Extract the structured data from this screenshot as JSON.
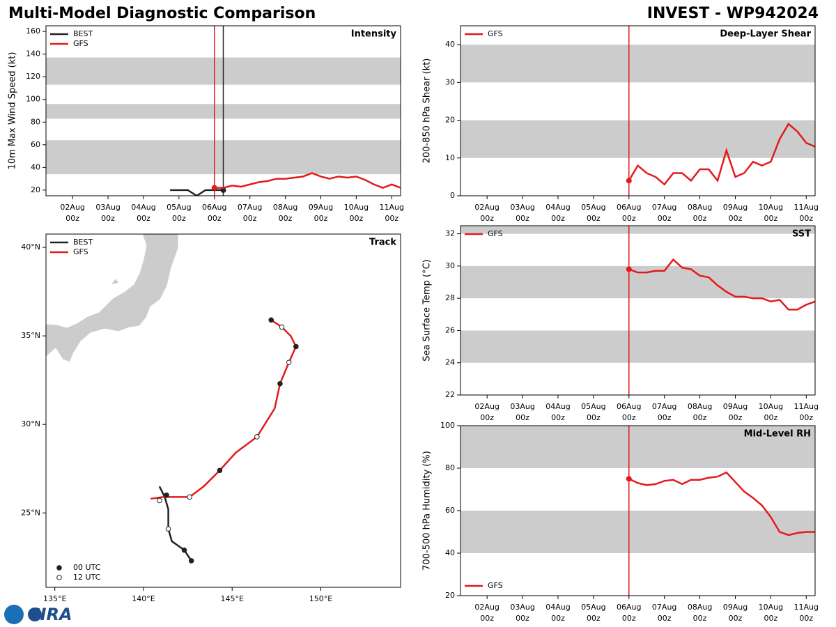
{
  "header": {
    "title": "Multi-Model Diagnostic Comparison",
    "subtitle": "INVEST - WP942024"
  },
  "logo": "CIRA",
  "chart_data": [
    {
      "type": "line",
      "title": "Intensity",
      "ylabel": "10m Max Wind Speed (kt)",
      "xlim": [
        "01Aug 06z",
        "11Aug 06z"
      ],
      "xticks": [
        "02Aug 00z",
        "03Aug 00z",
        "04Aug 00z",
        "05Aug 00z",
        "06Aug 00z",
        "07Aug 00z",
        "08Aug 00z",
        "09Aug 00z",
        "10Aug 00z",
        "11Aug 00z"
      ],
      "ylim": [
        15,
        165
      ],
      "yticks": [
        20,
        40,
        60,
        80,
        100,
        120,
        140,
        160
      ],
      "bands": [
        [
          34,
          64
        ],
        [
          83,
          96
        ],
        [
          113,
          137
        ]
      ],
      "legend": "upper left",
      "vlines": [
        {
          "x": "06Aug 00z",
          "color": "#e31a1c"
        },
        {
          "x": "06Aug 06z",
          "color": "#222222"
        }
      ],
      "series": [
        {
          "name": "BEST",
          "color": "#222222",
          "endpoint_marker": "last",
          "x": [
            "04Aug 18z",
            "05Aug 00z",
            "05Aug 06z",
            "05Aug 12z",
            "05Aug 18z",
            "06Aug 00z",
            "06Aug 06z"
          ],
          "values": [
            20,
            20,
            20,
            15,
            20,
            20,
            20
          ]
        },
        {
          "name": "GFS",
          "color": "#e31a1c",
          "endpoint_marker": "first",
          "x": [
            "06Aug 00z",
            "06Aug 06z",
            "06Aug 12z",
            "06Aug 18z",
            "07Aug 00z",
            "07Aug 06z",
            "07Aug 12z",
            "07Aug 18z",
            "08Aug 00z",
            "08Aug 06z",
            "08Aug 12z",
            "08Aug 18z",
            "09Aug 00z",
            "09Aug 06z",
            "09Aug 12z",
            "09Aug 18z",
            "10Aug 00z",
            "10Aug 06z",
            "10Aug 12z",
            "10Aug 18z",
            "11Aug 00z",
            "11Aug 06z"
          ],
          "values": [
            22,
            22,
            24,
            23,
            25,
            27,
            28,
            30,
            30,
            31,
            32,
            35,
            32,
            30,
            32,
            31,
            32,
            29,
            25,
            22,
            25,
            22
          ]
        }
      ]
    },
    {
      "type": "line",
      "title": "Deep-Layer Shear",
      "ylabel": "200-850 hPa Shear (kt)",
      "xlim": [
        "01Aug 06z",
        "11Aug 06z"
      ],
      "xticks": [
        "02Aug 00z",
        "03Aug 00z",
        "04Aug 00z",
        "05Aug 00z",
        "06Aug 00z",
        "07Aug 00z",
        "08Aug 00z",
        "09Aug 00z",
        "10Aug 00z",
        "11Aug 00z"
      ],
      "ylim": [
        0,
        45
      ],
      "yticks": [
        0,
        10,
        20,
        30,
        40
      ],
      "bands": [
        [
          10,
          20
        ],
        [
          30,
          40
        ]
      ],
      "legend": "upper left",
      "vlines": [
        {
          "x": "06Aug 00z",
          "color": "#e31a1c"
        }
      ],
      "series": [
        {
          "name": "GFS",
          "color": "#e31a1c",
          "endpoint_marker": "first",
          "x": [
            "06Aug 00z",
            "06Aug 06z",
            "06Aug 12z",
            "06Aug 18z",
            "07Aug 00z",
            "07Aug 06z",
            "07Aug 12z",
            "07Aug 18z",
            "08Aug 00z",
            "08Aug 06z",
            "08Aug 12z",
            "08Aug 18z",
            "09Aug 00z",
            "09Aug 06z",
            "09Aug 12z",
            "09Aug 18z",
            "10Aug 00z",
            "10Aug 06z",
            "10Aug 12z",
            "10Aug 18z",
            "11Aug 00z",
            "11Aug 06z"
          ],
          "values": [
            4,
            8,
            6,
            5,
            3,
            6,
            6,
            4,
            7,
            7,
            4,
            12,
            5,
            6,
            9,
            8,
            9,
            15,
            19,
            17,
            14,
            13
          ]
        }
      ]
    },
    {
      "type": "track",
      "title": "Track",
      "xlim": [
        134.5,
        154.5
      ],
      "ylim": [
        20.8,
        40.75
      ],
      "xticks": [
        {
          "value": 135,
          "label": "135°E"
        },
        {
          "value": 140,
          "label": "140°E"
        },
        {
          "value": 145,
          "label": "145°E"
        },
        {
          "value": 150,
          "label": "150°E"
        }
      ],
      "yticks": [
        {
          "value": 25,
          "label": "25°N"
        },
        {
          "value": 30,
          "label": "30°N"
        },
        {
          "value": 35,
          "label": "35°N"
        },
        {
          "value": 40,
          "label": "40°N"
        }
      ],
      "legend": "upper left",
      "marker_legend": "lower left",
      "series": [
        {
          "name": "BEST",
          "color": "#222222",
          "x": [
            140.9,
            141.2,
            141.4,
            141.4,
            141.6,
            142.3,
            142.7
          ],
          "y": [
            26.5,
            25.9,
            25.2,
            24.1,
            23.4,
            22.9,
            22.3
          ]
        },
        {
          "name": "GFS",
          "color": "#e31a1c",
          "x": [
            140.4,
            141.1,
            141.7,
            142.6,
            143.4,
            144.3,
            145.2,
            146.4,
            147.4,
            147.7,
            148.2,
            148.6,
            148.3,
            147.8,
            147.2
          ],
          "y": [
            25.8,
            25.9,
            25.9,
            25.9,
            26.5,
            27.4,
            28.4,
            29.3,
            30.9,
            32.3,
            33.5,
            34.4,
            35.0,
            35.5,
            35.9
          ]
        },
        {
          "name": "00 UTC",
          "color": "#222222",
          "fill": "#222222",
          "x": [
            141.3,
            142.3,
            142.7,
            144.3,
            147.7,
            148.6,
            147.2
          ],
          "y": [
            26.0,
            22.9,
            22.3,
            27.4,
            32.3,
            34.4,
            35.9
          ]
        },
        {
          "name": "12 UTC",
          "color": "#222222",
          "fill": "#ffffff",
          "x": [
            140.9,
            141.4,
            142.6,
            146.4,
            148.2,
            147.8
          ],
          "y": [
            25.7,
            24.1,
            25.9,
            29.3,
            33.5,
            35.5
          ]
        }
      ]
    },
    {
      "type": "line",
      "title": "SST",
      "ylabel": "Sea Surface Temp (°C)",
      "xlim": [
        "01Aug 06z",
        "11Aug 06z"
      ],
      "xticks": [
        "02Aug 00z",
        "03Aug 00z",
        "04Aug 00z",
        "05Aug 00z",
        "06Aug 00z",
        "07Aug 00z",
        "08Aug 00z",
        "09Aug 00z",
        "10Aug 00z",
        "11Aug 00z"
      ],
      "ylim": [
        22,
        32.5
      ],
      "yticks": [
        22,
        24,
        26,
        28,
        30,
        32
      ],
      "bands": [
        [
          24,
          26
        ],
        [
          28,
          30
        ],
        [
          32,
          34
        ]
      ],
      "legend": "upper left",
      "vlines": [
        {
          "x": "06Aug 00z",
          "color": "#e31a1c"
        }
      ],
      "series": [
        {
          "name": "GFS",
          "color": "#e31a1c",
          "endpoint_marker": "first",
          "x": [
            "06Aug 00z",
            "06Aug 06z",
            "06Aug 12z",
            "06Aug 18z",
            "07Aug 00z",
            "07Aug 06z",
            "07Aug 12z",
            "07Aug 18z",
            "08Aug 00z",
            "08Aug 06z",
            "08Aug 12z",
            "08Aug 18z",
            "09Aug 00z",
            "09Aug 06z",
            "09Aug 12z",
            "09Aug 18z",
            "10Aug 00z",
            "10Aug 06z",
            "10Aug 12z",
            "10Aug 18z",
            "11Aug 00z",
            "11Aug 06z"
          ],
          "values": [
            29.8,
            29.6,
            29.6,
            29.7,
            29.7,
            30.4,
            29.9,
            29.8,
            29.4,
            29.3,
            28.8,
            28.4,
            28.1,
            28.1,
            28.0,
            28.0,
            27.8,
            27.9,
            27.3,
            27.3,
            27.6,
            27.8
          ]
        }
      ]
    },
    {
      "type": "line",
      "title": "Mid-Level RH",
      "ylabel": "700-500 hPa Humidity (%)",
      "xlim": [
        "01Aug 06z",
        "11Aug 06z"
      ],
      "xticks": [
        "02Aug 00z",
        "03Aug 00z",
        "04Aug 00z",
        "05Aug 00z",
        "06Aug 00z",
        "07Aug 00z",
        "08Aug 00z",
        "09Aug 00z",
        "10Aug 00z",
        "11Aug 00z"
      ],
      "ylim": [
        20,
        100
      ],
      "yticks": [
        20,
        40,
        60,
        80,
        100
      ],
      "bands": [
        [
          40,
          60
        ],
        [
          80,
          100
        ]
      ],
      "legend": "lower left",
      "vlines": [
        {
          "x": "06Aug 00z",
          "color": "#e31a1c"
        }
      ],
      "series": [
        {
          "name": "GFS",
          "color": "#e31a1c",
          "endpoint_marker": "first",
          "x": [
            "06Aug 00z",
            "06Aug 06z",
            "06Aug 12z",
            "06Aug 18z",
            "07Aug 00z",
            "07Aug 06z",
            "07Aug 12z",
            "07Aug 18z",
            "08Aug 00z",
            "08Aug 06z",
            "08Aug 12z",
            "08Aug 18z",
            "09Aug 00z",
            "09Aug 06z",
            "09Aug 12z",
            "09Aug 18z",
            "10Aug 00z",
            "10Aug 06z",
            "10Aug 12z",
            "10Aug 18z",
            "11Aug 00z",
            "11Aug 06z"
          ],
          "values": [
            75,
            73,
            72,
            72.5,
            74,
            74.5,
            72.5,
            74.5,
            74.5,
            75.5,
            76,
            78,
            73.5,
            69,
            66,
            62.5,
            57,
            50,
            48.5,
            49.5,
            50,
            50
          ]
        }
      ]
    }
  ]
}
